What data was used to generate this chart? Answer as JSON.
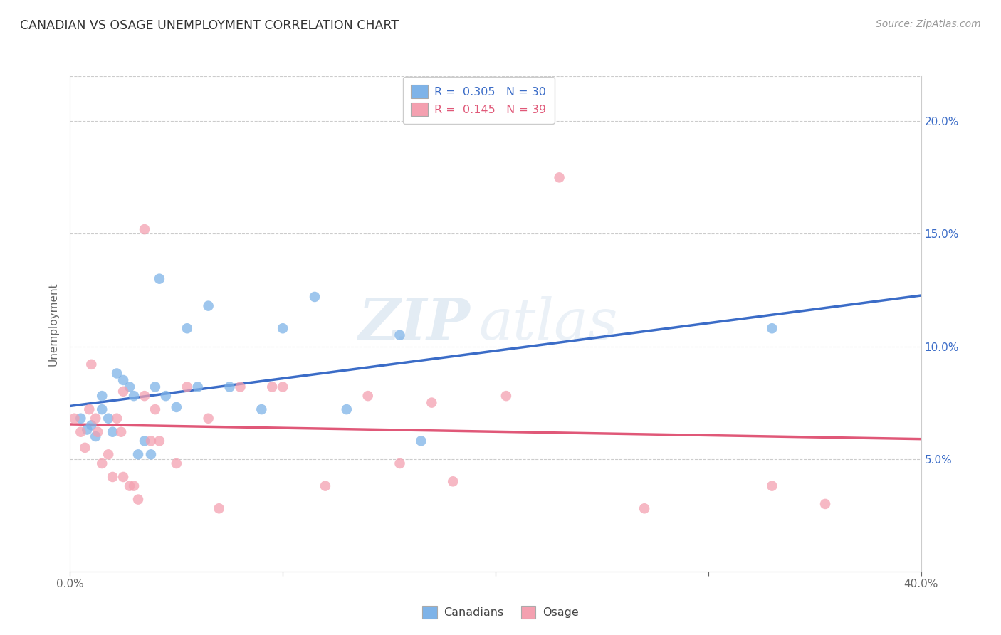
{
  "title": "CANADIAN VS OSAGE UNEMPLOYMENT CORRELATION CHART",
  "source": "Source: ZipAtlas.com",
  "ylabel": "Unemployment",
  "xlim": [
    0.0,
    0.4
  ],
  "ylim": [
    0.0,
    0.22
  ],
  "yticks": [
    0.05,
    0.1,
    0.15,
    0.2
  ],
  "ytick_labels": [
    "5.0%",
    "10.0%",
    "15.0%",
    "20.0%"
  ],
  "xticks": [
    0.0,
    0.1,
    0.2,
    0.3,
    0.4
  ],
  "xtick_labels": [
    "0.0%",
    "",
    "",
    "",
    "40.0%"
  ],
  "blue_color": "#7EB3E8",
  "pink_color": "#F4A0B0",
  "blue_line_color": "#3B6CC7",
  "pink_line_color": "#E05878",
  "legend_R_blue": "0.305",
  "legend_N_blue": "30",
  "legend_R_pink": "0.145",
  "legend_N_pink": "39",
  "watermark_zip": "ZIP",
  "watermark_atlas": "atlas",
  "canadians_x": [
    0.005,
    0.008,
    0.01,
    0.012,
    0.015,
    0.015,
    0.018,
    0.02,
    0.022,
    0.025,
    0.028,
    0.03,
    0.032,
    0.035,
    0.038,
    0.04,
    0.042,
    0.045,
    0.05,
    0.055,
    0.06,
    0.065,
    0.075,
    0.09,
    0.1,
    0.115,
    0.13,
    0.155,
    0.165,
    0.33
  ],
  "canadians_y": [
    0.068,
    0.063,
    0.065,
    0.06,
    0.072,
    0.078,
    0.068,
    0.062,
    0.088,
    0.085,
    0.082,
    0.078,
    0.052,
    0.058,
    0.052,
    0.082,
    0.13,
    0.078,
    0.073,
    0.108,
    0.082,
    0.118,
    0.082,
    0.072,
    0.108,
    0.122,
    0.072,
    0.105,
    0.058,
    0.108
  ],
  "osage_x": [
    0.002,
    0.005,
    0.007,
    0.009,
    0.01,
    0.012,
    0.013,
    0.015,
    0.018,
    0.02,
    0.022,
    0.024,
    0.025,
    0.028,
    0.03,
    0.032,
    0.035,
    0.038,
    0.04,
    0.042,
    0.05,
    0.055,
    0.065,
    0.07,
    0.08,
    0.095,
    0.1,
    0.12,
    0.14,
    0.155,
    0.18,
    0.205,
    0.23,
    0.27,
    0.33,
    0.355,
    0.025,
    0.035,
    0.17
  ],
  "osage_y": [
    0.068,
    0.062,
    0.055,
    0.072,
    0.092,
    0.068,
    0.062,
    0.048,
    0.052,
    0.042,
    0.068,
    0.062,
    0.042,
    0.038,
    0.038,
    0.032,
    0.152,
    0.058,
    0.072,
    0.058,
    0.048,
    0.082,
    0.068,
    0.028,
    0.082,
    0.082,
    0.082,
    0.038,
    0.078,
    0.048,
    0.04,
    0.078,
    0.175,
    0.028,
    0.038,
    0.03,
    0.08,
    0.078,
    0.075
  ]
}
